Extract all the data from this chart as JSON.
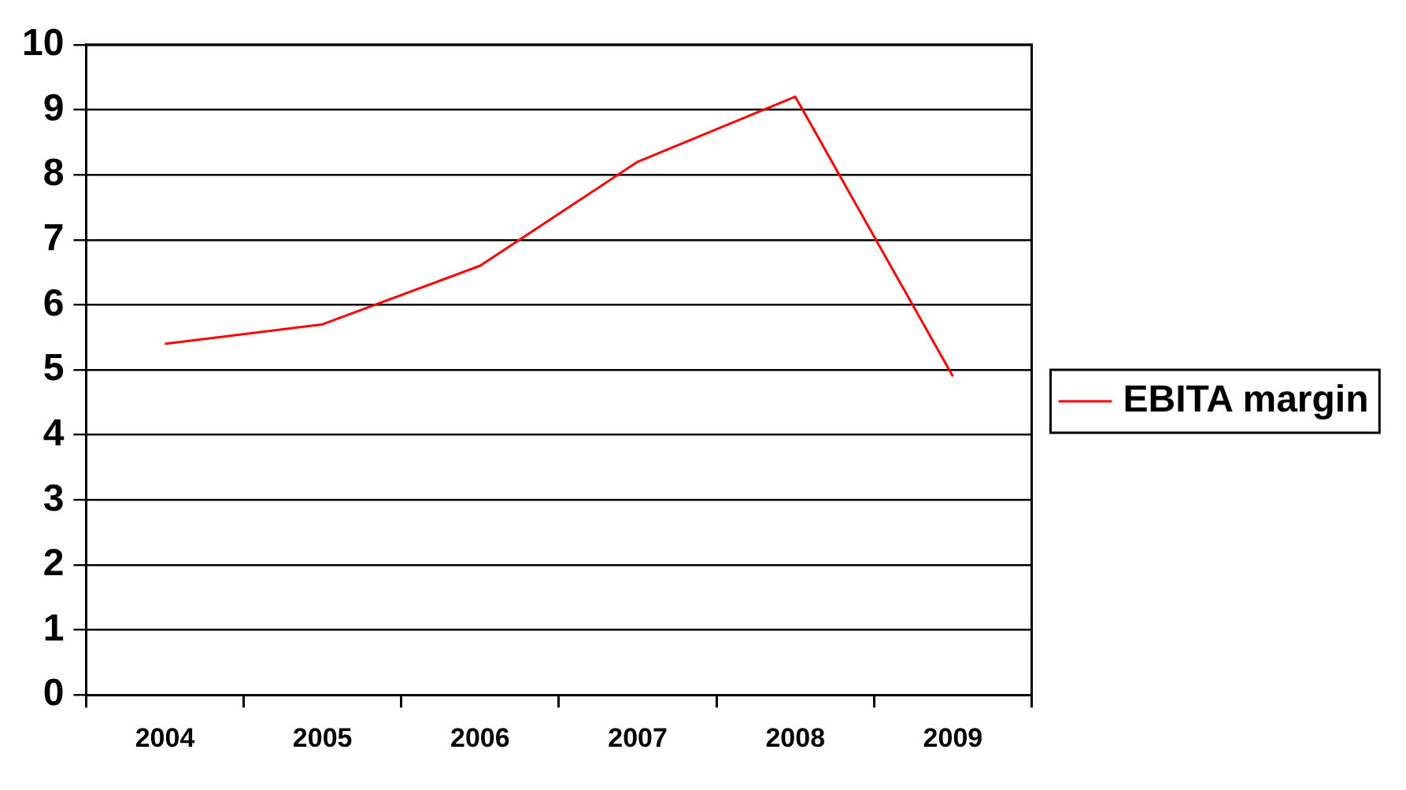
{
  "chart_data": {
    "type": "line",
    "categories": [
      "2004",
      "2005",
      "2006",
      "2007",
      "2008",
      "2009"
    ],
    "series": [
      {
        "name": "EBITA margin",
        "color": "#ff0000",
        "values": [
          5.4,
          5.7,
          6.6,
          8.2,
          9.2,
          4.9
        ]
      }
    ],
    "ylim": [
      0,
      10
    ],
    "yticks": [
      0,
      1,
      2,
      3,
      4,
      5,
      6,
      7,
      8,
      9,
      10
    ],
    "grid": "y",
    "legend": "right",
    "marker": "none",
    "line_style": "solid"
  }
}
